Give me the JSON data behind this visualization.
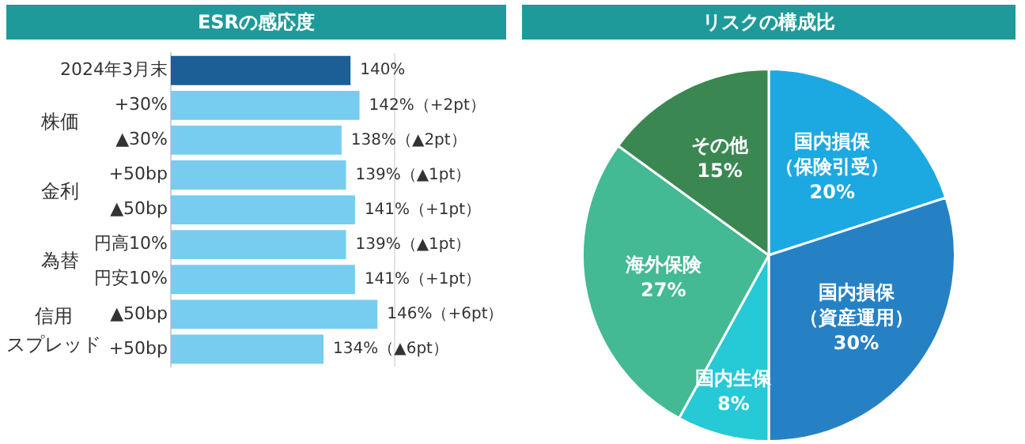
{
  "chart_data": [
    {
      "type": "bar",
      "orientation": "horizontal",
      "title": "ESRの感応度",
      "categories": [
        "2024年3月末",
        "+30%",
        "▲30%",
        "+50bp",
        "▲50bp",
        "円高10%",
        "円安10%",
        "▲50bp",
        "+50bp"
      ],
      "values": [
        140,
        142,
        138,
        139,
        141,
        139,
        141,
        146,
        134
      ],
      "colors": [
        "#1b5f96",
        "#77cdf0",
        "#77cdf0",
        "#77cdf0",
        "#77cdf0",
        "#77cdf0",
        "#77cdf0",
        "#77cdf0",
        "#77cdf0"
      ],
      "value_labels": [
        "140%",
        "142%（+2pt）",
        "138%（▲2pt）",
        "139%（▲1pt）",
        "141%（+1pt）",
        "139%（▲1pt）",
        "141%（+1pt）",
        "146%（+6pt）",
        "134%（▲6pt）"
      ],
      "xlim": [
        100,
        150
      ],
      "tick_labels": "y",
      "grid": false,
      "legend": false,
      "annotations": [
        "株価",
        "金利",
        "為替",
        "信用スプレッド"
      ]
    },
    {
      "type": "pie",
      "title": "リスクの構成比",
      "categories": [
        "国内損保（保険引受）",
        "国内損保（資産運用）",
        "国内生保",
        "海外保険",
        "その他"
      ],
      "values": [
        20,
        30,
        8,
        27,
        15
      ],
      "colors": [
        "#1ca9e1",
        "#2581c4",
        "#26c9d6",
        "#43b994",
        "#3a8752"
      ],
      "value_labels": [
        "20%",
        "30%",
        "8%",
        "27%",
        "15%"
      ],
      "legend": false
    }
  ]
}
